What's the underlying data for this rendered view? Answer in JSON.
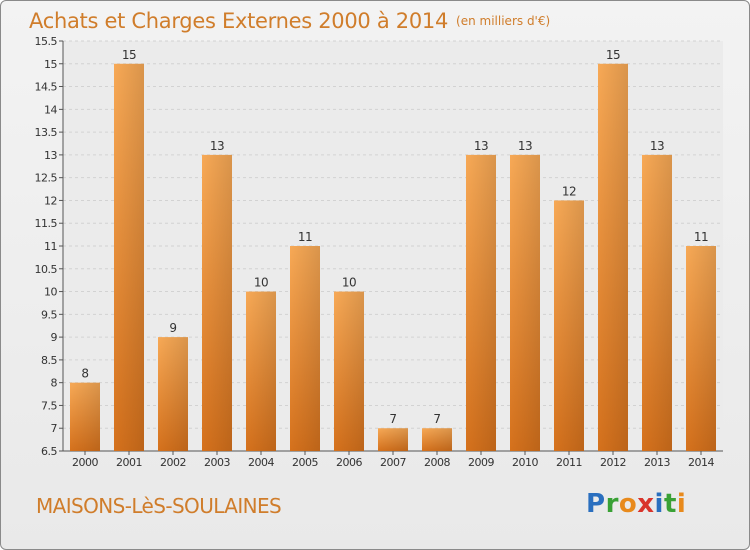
{
  "header": {
    "title": "Achats et Charges Externes 2000 à 2014",
    "subtitle": "(en milliers d'€)"
  },
  "footer": {
    "commune": "MAISONS-LèS-SOULAINES",
    "brand": "Proxiti",
    "brand_letters": [
      {
        "ch": "P",
        "color": "#2a6fbf"
      },
      {
        "ch": "r",
        "color": "#39a135"
      },
      {
        "ch": "o",
        "color": "#e88a1c"
      },
      {
        "ch": "x",
        "color": "#d9342b"
      },
      {
        "ch": "i",
        "color": "#2a6fbf"
      },
      {
        "ch": "t",
        "color": "#39a135"
      },
      {
        "ch": "i",
        "color": "#e88a1c"
      }
    ]
  },
  "colors": {
    "bar_top": "#f7a956",
    "bar_bottom": "#d5711c",
    "text": "#d07d2b",
    "grid": "#d2d2d2"
  },
  "chart_data": {
    "type": "bar",
    "categories": [
      "2000",
      "2001",
      "2002",
      "2003",
      "2004",
      "2005",
      "2006",
      "2007",
      "2008",
      "2009",
      "2010",
      "2011",
      "2012",
      "2013",
      "2014"
    ],
    "values": [
      8,
      15,
      9,
      13,
      10,
      11,
      10,
      7,
      7,
      13,
      13,
      12,
      15,
      13,
      11
    ],
    "data_labels": [
      "8",
      "15",
      "9",
      "13",
      "10",
      "11",
      "10",
      "7",
      "7",
      "13",
      "13",
      "12",
      "15",
      "13",
      "11"
    ],
    "yticks": [
      "6.5",
      "7",
      "7.5",
      "8",
      "8.5",
      "9",
      "9.5",
      "10",
      "10.5",
      "11",
      "11.5",
      "12",
      "12.5",
      "13",
      "13.5",
      "14",
      "14.5",
      "15",
      "15.5"
    ],
    "ylim": [
      6.5,
      15.5
    ],
    "grid": true
  }
}
